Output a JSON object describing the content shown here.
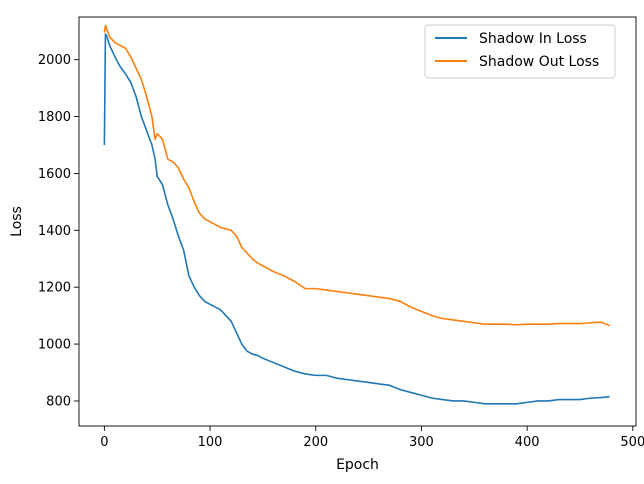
{
  "chart_data": {
    "type": "line",
    "title": "",
    "xlabel": "Epoch",
    "ylabel": "Loss",
    "xlim": [
      -24,
      503
    ],
    "ylim": [
      712,
      2150
    ],
    "grid": false,
    "legend_position": "top-right",
    "x_ticks": [
      0,
      100,
      200,
      300,
      400,
      500
    ],
    "x_tick_labels": [
      "0",
      "100",
      "200",
      "300",
      "400",
      "500"
    ],
    "y_ticks": [
      800,
      1000,
      1200,
      1400,
      1600,
      1800,
      2000
    ],
    "y_tick_labels": [
      "800",
      "1000",
      "1200",
      "1400",
      "1600",
      "1800",
      "2000"
    ],
    "series": [
      {
        "name": "Shadow In Loss",
        "color": "#1f77b4",
        "x": [
          0,
          1,
          2,
          5,
          10,
          15,
          20,
          25,
          30,
          35,
          40,
          45,
          48,
          50,
          55,
          60,
          65,
          70,
          75,
          80,
          85,
          90,
          95,
          100,
          110,
          120,
          125,
          130,
          135,
          140,
          145,
          150,
          160,
          170,
          180,
          190,
          200,
          210,
          220,
          230,
          240,
          250,
          260,
          270,
          280,
          290,
          300,
          310,
          320,
          330,
          340,
          350,
          360,
          370,
          380,
          390,
          400,
          410,
          420,
          430,
          440,
          450,
          460,
          470,
          478
        ],
        "y": [
          1700,
          2090,
          2085,
          2050,
          2010,
          1975,
          1950,
          1920,
          1870,
          1800,
          1750,
          1700,
          1650,
          1590,
          1560,
          1490,
          1440,
          1380,
          1330,
          1240,
          1200,
          1170,
          1150,
          1140,
          1120,
          1080,
          1040,
          1000,
          975,
          965,
          960,
          950,
          935,
          920,
          905,
          895,
          890,
          890,
          880,
          875,
          870,
          865,
          860,
          855,
          840,
          830,
          820,
          810,
          805,
          800,
          800,
          795,
          790,
          790,
          790,
          790,
          795,
          800,
          800,
          805,
          805,
          805,
          810,
          812,
          815
        ]
      },
      {
        "name": "Shadow Out Loss",
        "color": "#ff7f0e",
        "x": [
          0,
          1,
          2,
          5,
          10,
          15,
          20,
          25,
          30,
          35,
          40,
          45,
          48,
          50,
          55,
          60,
          65,
          70,
          75,
          80,
          85,
          90,
          95,
          100,
          110,
          120,
          125,
          130,
          135,
          140,
          145,
          150,
          160,
          170,
          180,
          190,
          200,
          210,
          220,
          230,
          240,
          250,
          260,
          270,
          280,
          290,
          300,
          310,
          320,
          330,
          340,
          350,
          360,
          370,
          380,
          390,
          400,
          410,
          420,
          430,
          440,
          450,
          460,
          470,
          478
        ],
        "y": [
          2095,
          2120,
          2110,
          2080,
          2060,
          2050,
          2040,
          2010,
          1970,
          1930,
          1870,
          1800,
          1720,
          1740,
          1720,
          1650,
          1640,
          1620,
          1580,
          1550,
          1500,
          1460,
          1440,
          1430,
          1410,
          1400,
          1380,
          1340,
          1320,
          1300,
          1285,
          1275,
          1255,
          1240,
          1220,
          1195,
          1195,
          1190,
          1185,
          1180,
          1175,
          1170,
          1165,
          1160,
          1150,
          1130,
          1115,
          1100,
          1090,
          1085,
          1080,
          1075,
          1070,
          1070,
          1070,
          1068,
          1070,
          1070,
          1070,
          1072,
          1072,
          1072,
          1075,
          1077,
          1065
        ]
      }
    ]
  }
}
